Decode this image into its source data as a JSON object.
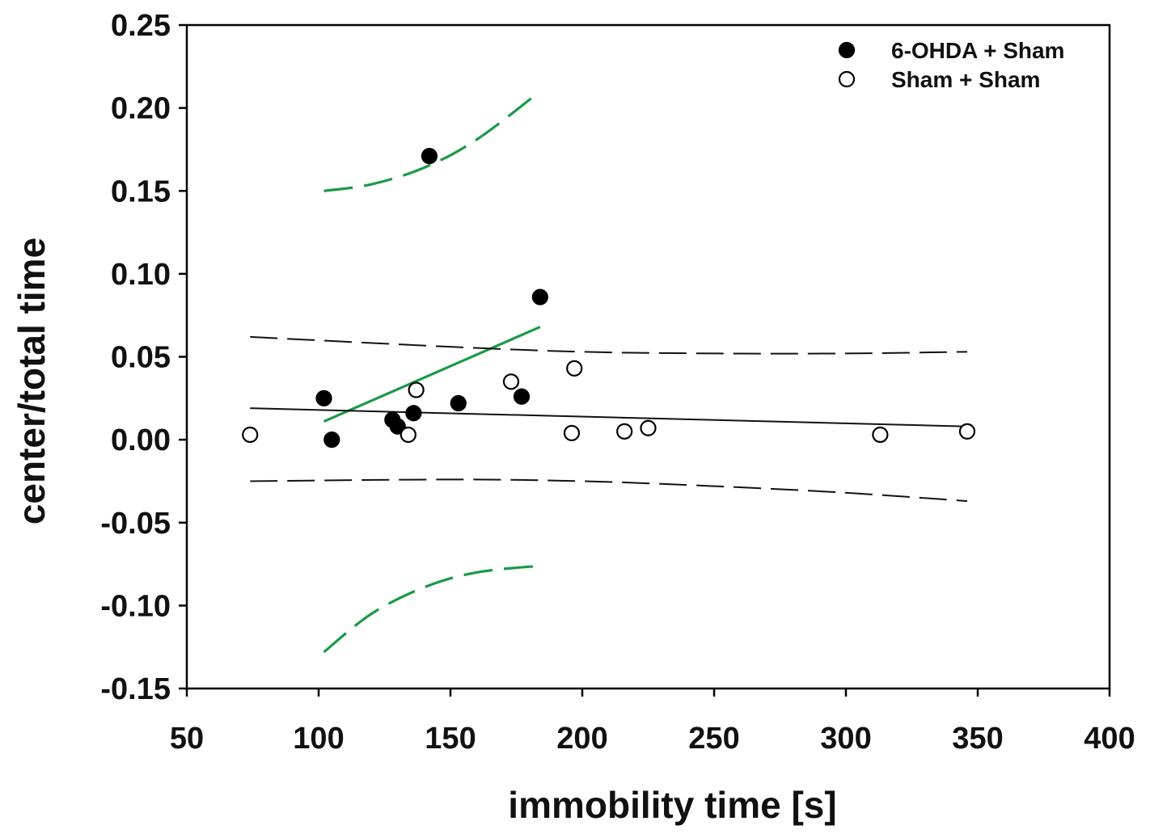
{
  "chart_data": {
    "type": "scatter",
    "title": "",
    "xlabel": "immobility time [s]",
    "ylabel": "center/total time",
    "xlim": [
      50,
      400
    ],
    "ylim": [
      -0.15,
      0.25
    ],
    "xticks": [
      50,
      100,
      150,
      200,
      250,
      300,
      350,
      400
    ],
    "xtick_labels": [
      "50",
      "100",
      "150",
      "200",
      "250",
      "300",
      "350",
      "400"
    ],
    "yticks": [
      -0.15,
      -0.1,
      -0.05,
      0.0,
      0.05,
      0.1,
      0.15,
      0.2,
      0.25
    ],
    "ytick_labels": [
      "-0.15",
      "-0.10",
      "-0.05",
      "0.00",
      "0.05",
      "0.10",
      "0.15",
      "0.20",
      "0.25"
    ],
    "grid": false,
    "legend_position": "top-right",
    "series": [
      {
        "name": "6-OHDA + Sham",
        "marker": "filled-circle",
        "color": "#000000",
        "points": [
          {
            "x": 102,
            "y": 0.025
          },
          {
            "x": 105,
            "y": 0.0
          },
          {
            "x": 128,
            "y": 0.012
          },
          {
            "x": 130,
            "y": 0.008
          },
          {
            "x": 136,
            "y": 0.016
          },
          {
            "x": 142,
            "y": 0.171
          },
          {
            "x": 153,
            "y": 0.022
          },
          {
            "x": 177,
            "y": 0.026
          },
          {
            "x": 184,
            "y": 0.086
          }
        ]
      },
      {
        "name": "Sham + Sham",
        "marker": "open-circle",
        "color": "#000000",
        "points": [
          {
            "x": 74,
            "y": 0.003
          },
          {
            "x": 134,
            "y": 0.003
          },
          {
            "x": 137,
            "y": 0.03
          },
          {
            "x": 173,
            "y": 0.035
          },
          {
            "x": 196,
            "y": 0.004
          },
          {
            "x": 197,
            "y": 0.043
          },
          {
            "x": 216,
            "y": 0.005
          },
          {
            "x": 225,
            "y": 0.007
          },
          {
            "x": 313,
            "y": 0.003
          },
          {
            "x": 346,
            "y": 0.005
          }
        ]
      }
    ],
    "lines": [
      {
        "name": "6-OHDA regression",
        "color": "#1a9a48",
        "style": "solid",
        "x": [
          102,
          184
        ],
        "y": [
          0.011,
          0.068
        ]
      },
      {
        "name": "6-OHDA upper confidence band",
        "color": "#1a9a48",
        "style": "dashed",
        "x": [
          102,
          120,
          140,
          160,
          184
        ],
        "y": [
          0.15,
          0.154,
          0.164,
          0.181,
          0.21
        ]
      },
      {
        "name": "6-OHDA lower confidence band",
        "color": "#1a9a48",
        "style": "dashed",
        "x": [
          102,
          120,
          140,
          160,
          184
        ],
        "y": [
          -0.128,
          -0.105,
          -0.089,
          -0.08,
          -0.076
        ]
      },
      {
        "name": "Sham regression",
        "color": "#111111",
        "style": "solid",
        "x": [
          74,
          346
        ],
        "y": [
          0.019,
          0.008
        ]
      },
      {
        "name": "Sham upper confidence band",
        "color": "#111111",
        "style": "dashed",
        "x": [
          74,
          150,
          200,
          250,
          300,
          346
        ],
        "y": [
          0.062,
          0.056,
          0.053,
          0.052,
          0.052,
          0.053
        ]
      },
      {
        "name": "Sham lower confidence band",
        "color": "#111111",
        "style": "dashed",
        "x": [
          74,
          150,
          200,
          250,
          300,
          346
        ],
        "y": [
          -0.025,
          -0.024,
          -0.025,
          -0.028,
          -0.032,
          -0.037
        ]
      }
    ]
  }
}
